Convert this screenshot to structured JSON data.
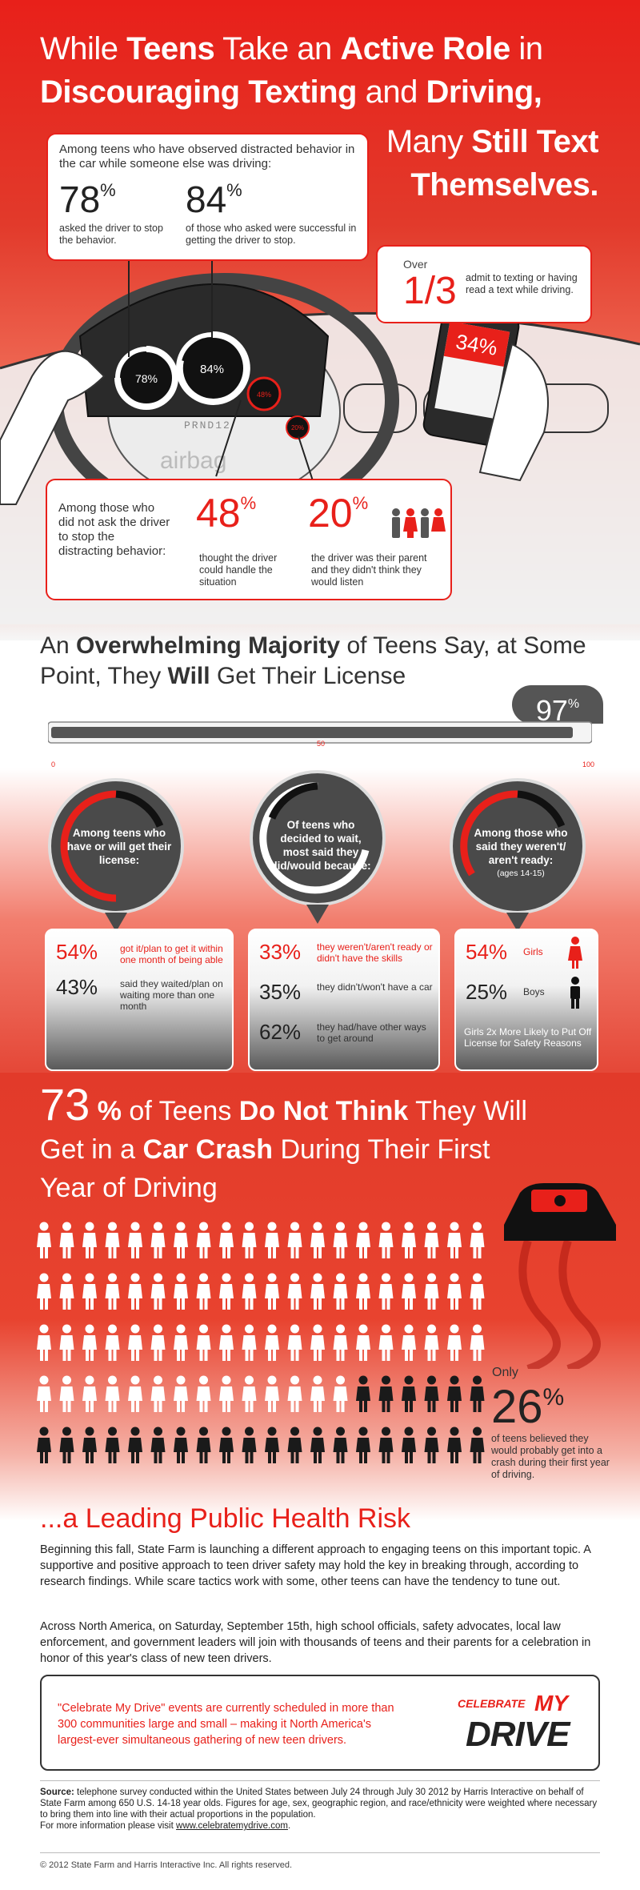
{
  "headline": {
    "line1_a": "While ",
    "line1_b": "Teens",
    "line1_c": " Take an ",
    "line1_d": "Active Role",
    "line1_e": " in",
    "line2_a": "Discouraging Texting",
    "line2_b": " and ",
    "line2_c": "Driving,",
    "line3_a": "Many ",
    "line3_b": "Still Text",
    "line4": "Themselves."
  },
  "observed_card": {
    "lead": "Among teens who have observed distracted behavior in the car while someone else was driving:",
    "stat1_value": "78",
    "stat1_unit": "%",
    "stat1_desc": "asked the driver to stop the behavior.",
    "stat2_value": "84",
    "stat2_unit": "%",
    "stat2_desc": "of those who asked were successful in getting the driver to stop."
  },
  "texting_card": {
    "over": "Over",
    "fraction": "1/3",
    "desc": "admit to texting or having read a text while driving."
  },
  "dashboard": {
    "gauge1": "78%",
    "gauge2": "84%",
    "gauge3": "48%",
    "gauge4": "20%",
    "gear": "PRND12",
    "airbag": "airbag",
    "phone_pct": "34%"
  },
  "did_not_ask_card": {
    "lead": "Among those who did not ask the driver to stop the distracting behavior:",
    "stat1_value": "48",
    "stat1_unit": "%",
    "stat1_desc": "thought the driver could handle the situation",
    "stat2_value": "20",
    "stat2_unit": "%",
    "stat2_desc": "the driver was their parent and they didn't think they would listen"
  },
  "license": {
    "title_a": "An ",
    "title_b": "Overwhelming Majority",
    "title_c": " of Teens Say, at Some",
    "title_d": "Point, They ",
    "title_e": "Will",
    "title_f": " Get Their License",
    "meter_value": 97,
    "pct": "97",
    "pct_unit": "%",
    "tick_min": "0",
    "tick_mid": "50",
    "tick_max": "100",
    "bubbles": [
      {
        "text": "Among teens who have or will get their license:",
        "sub": ""
      },
      {
        "text": "Of teens who decided to wait, most said they did/would because:",
        "sub": ""
      },
      {
        "text": "Among those who said they weren't/ aren't ready:",
        "sub": "(ages 14-15)"
      }
    ],
    "box1": [
      {
        "pct": "54%",
        "desc": "got it/plan to get it within one month of being able"
      },
      {
        "pct": "43%",
        "desc": "said they waited/plan on waiting more than one month"
      }
    ],
    "box2": [
      {
        "pct": "33%",
        "desc": "they weren't/aren't ready or didn't have the skills"
      },
      {
        "pct": "35%",
        "desc": "they didn't/won't have a car"
      },
      {
        "pct": "62%",
        "desc": "they had/have other ways to get around"
      }
    ],
    "box3": [
      {
        "pct": "54%",
        "desc": "Girls"
      },
      {
        "pct": "25%",
        "desc": "Boys"
      }
    ],
    "box3_note": "Girls 2x More Likely to Put Off License for Safety Reasons"
  },
  "crash": {
    "pct": "73",
    "pct_unit": " %",
    "title_a": " of Teens ",
    "title_b": "Do Not Think",
    "title_c": " They Will",
    "title_d": "Get in a ",
    "title_e": "Car Crash",
    "title_f": " During Their First",
    "title_g": "Year of Driving",
    "only": "Only",
    "pct26_value": "26",
    "pct26_unit": "%",
    "desc": "of teens believed they would probably get into a crash during their first year of driving.",
    "believers_fraction": 0.26
  },
  "risk": {
    "title": "...a Leading Public Health Risk",
    "para1": "Beginning this fall, State Farm is launching a different approach to engaging teens on this important topic. A supportive and positive approach to teen driver safety may hold the key in breaking through, according to research findings. While scare tactics work with some, other teens can have the tendency to tune out.",
    "para2": "Across North America, on Saturday, September 15th, high school officials, safety advocates, local law enforcement, and government leaders will join with thousands of teens and their parents for a celebration in honor of this year's class of new teen drivers.",
    "promo": "\"Celebrate My Drive\" events are currently scheduled in more than 300 communities large and small – making it North America's largest-ever simultaneous gathering of new teen drivers.",
    "logo_line1": "CELEBRATE",
    "logo_line2": "MY",
    "logo_line3": "DRIVE"
  },
  "footer": {
    "source_label": "Source:",
    "source_text": " telephone survey conducted within the United States between July 24 through July 30 2012 by Harris Interactive on behalf of State Farm among 650 U.S. 14-18 year olds. Figures for age, sex, geographic region, and race/ethnicity were weighted where necessary to bring them into line with their actual proportions in the population.",
    "more_info": "For more information please visit ",
    "url": "www.celebratemydrive.com",
    "url_end": ".",
    "copyright": "© 2012 State Farm and Harris Interactive Inc. All rights reserved."
  },
  "colors": {
    "brand_red": "#e8201a",
    "dark": "#333333",
    "gauge_dark": "#222222"
  }
}
